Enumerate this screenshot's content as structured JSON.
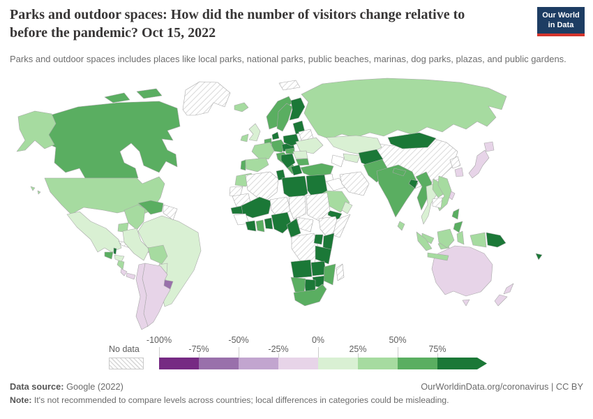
{
  "header": {
    "title": "Parks and outdoor spaces: How did the number of visitors change relative to before the pandemic? Oct 15, 2022",
    "subtitle": "Parks and outdoor spaces includes places like local parks, national parks, public beaches, marinas, dog parks, plazas, and public gardens.",
    "logo_line1": "Our World",
    "logo_line2": "in Data",
    "logo_navy": "#1d3d63",
    "logo_red": "#d4342c"
  },
  "legend": {
    "no_data_label": "No data",
    "ticks": [
      "-100%",
      "-75%",
      "-50%",
      "-25%",
      "0%",
      "25%",
      "50%",
      "75%"
    ]
  },
  "footer": {
    "source_label": "Data source:",
    "source_text": "Google (2022)",
    "link_text": "OurWorldinData.org/coronavirus | CC BY",
    "note_label": "Note:",
    "note_text": "It's not recommended to compare levels across countries; local differences in categories could be misleading."
  },
  "chart_data": {
    "type": "choropleth",
    "title": "Parks and outdoor spaces: How did the number of visitors change relative to before the pandemic?",
    "date": "Oct 15, 2022",
    "unit": "percent change in visitors relative to pre-pandemic baseline",
    "legend_position": "bottom",
    "legend_buckets": [
      {
        "code": "p4",
        "range": "-100% to -75%",
        "color": "#762a83"
      },
      {
        "code": "p3",
        "range": "-75% to -50%",
        "color": "#9970ab"
      },
      {
        "code": "p2",
        "range": "-50% to -25%",
        "color": "#c2a5cf"
      },
      {
        "code": "p1",
        "range": "-25% to 0%",
        "color": "#e7d4e8"
      },
      {
        "code": "g1",
        "range": "0% to +25%",
        "color": "#d9f0d3"
      },
      {
        "code": "g2",
        "range": "+25% to +50%",
        "color": "#a6dba0"
      },
      {
        "code": "g3",
        "range": "+50% to +75%",
        "color": "#5aae61"
      },
      {
        "code": "g4",
        "range": "more than +75%",
        "color": "#1b7837"
      },
      {
        "code": "nd",
        "range": "No data",
        "color": "hatch"
      },
      {
        "code": "wh",
        "range": "No data (unshaded)",
        "color": "#ffffff"
      }
    ],
    "countries": {
      "greenland": "nd",
      "canada": "g3",
      "alaska": "g2",
      "usa": "g2",
      "hawaii": "g2",
      "mexico": "g1",
      "guatemala": "g3",
      "belize": "g4",
      "honduras": "g1",
      "nicaragua": "g2",
      "costa-rica": "p1",
      "panama": "p1",
      "cuba": "nd",
      "hispaniola": "p1",
      "colombia": "g2",
      "venezuela": "g3",
      "guyanas": "nd",
      "ecuador": "g2",
      "peru": "g1",
      "brazil": "g1",
      "bolivia": "g2",
      "paraguay": "g1",
      "uruguay": "p3",
      "argentina": "p1",
      "chile": "p1",
      "iceland": "g2",
      "ireland": "g2",
      "uk": "g1",
      "norway": "g3",
      "sweden": "g3",
      "finland": "g4",
      "denmark": "g4",
      "benelux": "g3",
      "germany": "g3",
      "france": "g2",
      "spain": "g2",
      "portugal": "g3",
      "italy": "g3",
      "czech-austria": "g4",
      "poland": "g4",
      "baltics": "g4",
      "belarus": "nd",
      "ukraine": "g1",
      "romania": "g1",
      "hungary": "g3",
      "balkans": "g4",
      "bulgaria": "g3",
      "greece": "g4",
      "svalbard": "nd",
      "russia": "g2",
      "kazakhstan": "g1",
      "uzbekistan": "g1",
      "turkmenistan": "wh",
      "kyrgyzstan": "g2",
      "turkey": "g3",
      "syria": "wh",
      "iraq": "wh",
      "iran": "nd",
      "jordan-israel": "g3",
      "saudi-arabia": "g2",
      "yemen": "g4",
      "oman": "g1",
      "afghanistan": "g4",
      "pakistan": "g3",
      "india": "g3",
      "nepal": "g3",
      "bangladesh": "g4",
      "sri-lanka": "g2",
      "china": "nd",
      "mongolia": "g4",
      "north-korea": "nd",
      "south-korea": "p1",
      "japan": "p1",
      "taiwan": "p1",
      "myanmar": "g3",
      "thailand": "g1",
      "laos": "g2",
      "vietnam": "g2",
      "cambodia": "nd",
      "malaysia": "g2",
      "philippines": "g3",
      "indonesia": "g2",
      "png": "g4",
      "fiji": "g4",
      "australia": "p1",
      "new-zealand": "p1",
      "morocco": "g2",
      "western-sahara": "nd",
      "algeria": "nd",
      "tunisia": "g4",
      "libya": "g4",
      "egypt": "g4",
      "mauritania": "nd",
      "mali": "g4",
      "niger": "nd",
      "chad": "nd",
      "sudan": "nd",
      "senegal": "g4",
      "guinea-area": "wh",
      "ivory-coast": "g4",
      "ghana": "g3",
      "togo-benin": "g4",
      "nigeria": "g4",
      "cameroon": "g4",
      "central-africa": "nd",
      "ethiopia": "nd",
      "somalia": "nd",
      "drc": "nd",
      "uganda": "g4",
      "kenya": "g4",
      "tanzania": "g4",
      "angola": "g4",
      "zambia": "g4",
      "mozambique": "g3",
      "zimbabwe": "g4",
      "botswana": "g4",
      "namibia": "g3",
      "south-africa": "g3",
      "madagascar": "nd"
    }
  }
}
